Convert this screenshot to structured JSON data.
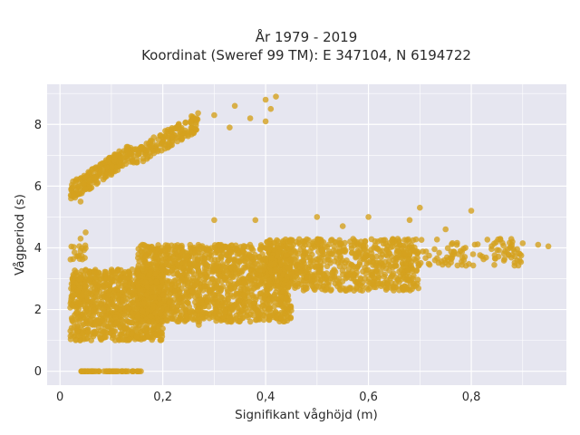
{
  "chart_data": {
    "type": "scatter",
    "title_lines": [
      "År 1979 - 2019",
      "Koordinat (Sweref 99 TM): E 347104, N 6194722"
    ],
    "xlabel": "Signifikant våghöjd (m)",
    "ylabel": "Vågperiod (s)",
    "xlim": [
      -0.025,
      0.985
    ],
    "ylim": [
      -0.45,
      9.3
    ],
    "x_ticks": [
      {
        "value": 0,
        "label": "0"
      },
      {
        "value": 0.2,
        "label": "0,2"
      },
      {
        "value": 0.4,
        "label": "0,4"
      },
      {
        "value": 0.6,
        "label": "0,6"
      },
      {
        "value": 0.8,
        "label": "0,8"
      }
    ],
    "y_ticks": [
      {
        "value": 0,
        "label": "0"
      },
      {
        "value": 2,
        "label": "2"
      },
      {
        "value": 4,
        "label": "4"
      },
      {
        "value": 6,
        "label": "6"
      },
      {
        "value": 8,
        "label": "8"
      }
    ],
    "grid": true,
    "legend": "none",
    "colors": {
      "marker": "#d4a11e",
      "plot_bg": "#e6e6f0",
      "grid": "#ffffff",
      "page_bg": "#ffffff"
    },
    "series": [
      {
        "clusters": [
          {
            "x": [
              0.02,
              0.14
            ],
            "y": [
              5.8,
              7.1
            ],
            "n": 220,
            "trend": true
          },
          {
            "x": [
              0.14,
              0.27
            ],
            "y": [
              6.9,
              8.1
            ],
            "n": 160,
            "trend": true
          },
          {
            "x": [
              0.04,
              0.16
            ],
            "y": [
              0,
              0
            ],
            "n": 60
          },
          {
            "x": [
              0.02,
              0.05
            ],
            "y": [
              3.6,
              4.1
            ],
            "n": 18
          },
          {
            "x": [
              0.02,
              0.2
            ],
            "y": [
              1.0,
              3.3
            ],
            "n": 900
          },
          {
            "x": [
              0.15,
              0.45
            ],
            "y": [
              1.6,
              4.1
            ],
            "n": 1400
          },
          {
            "x": [
              0.4,
              0.7
            ],
            "y": [
              2.6,
              4.3
            ],
            "n": 700
          },
          {
            "x": [
              0.65,
              0.9
            ],
            "y": [
              3.4,
              4.3
            ],
            "n": 120
          }
        ],
        "points": [
          {
            "x": 0.4,
            "y": 8.8
          },
          {
            "x": 0.42,
            "y": 8.9
          },
          {
            "x": 0.41,
            "y": 8.5
          },
          {
            "x": 0.37,
            "y": 8.2
          },
          {
            "x": 0.4,
            "y": 8.1
          },
          {
            "x": 0.34,
            "y": 8.6
          },
          {
            "x": 0.3,
            "y": 8.3
          },
          {
            "x": 0.33,
            "y": 7.9
          },
          {
            "x": 0.93,
            "y": 4.1
          },
          {
            "x": 0.9,
            "y": 4.15
          },
          {
            "x": 0.88,
            "y": 4.2
          },
          {
            "x": 0.7,
            "y": 5.3
          },
          {
            "x": 0.8,
            "y": 5.2
          },
          {
            "x": 0.75,
            "y": 4.6
          },
          {
            "x": 0.6,
            "y": 5.0
          },
          {
            "x": 0.68,
            "y": 4.9
          },
          {
            "x": 0.5,
            "y": 5.0
          },
          {
            "x": 0.55,
            "y": 4.7
          },
          {
            "x": 0.38,
            "y": 4.9
          },
          {
            "x": 0.3,
            "y": 4.9
          },
          {
            "x": 0.05,
            "y": 4.5
          },
          {
            "x": 0.04,
            "y": 4.3
          },
          {
            "x": 0.06,
            "y": 3.0
          },
          {
            "x": 0.27,
            "y": 1.5
          },
          {
            "x": 0.33,
            "y": 1.9
          },
          {
            "x": 0.3,
            "y": 1.8
          },
          {
            "x": 0.04,
            "y": 5.5
          },
          {
            "x": 0.05,
            "y": 5.9
          },
          {
            "x": 0.95,
            "y": 4.05
          }
        ]
      }
    ]
  }
}
